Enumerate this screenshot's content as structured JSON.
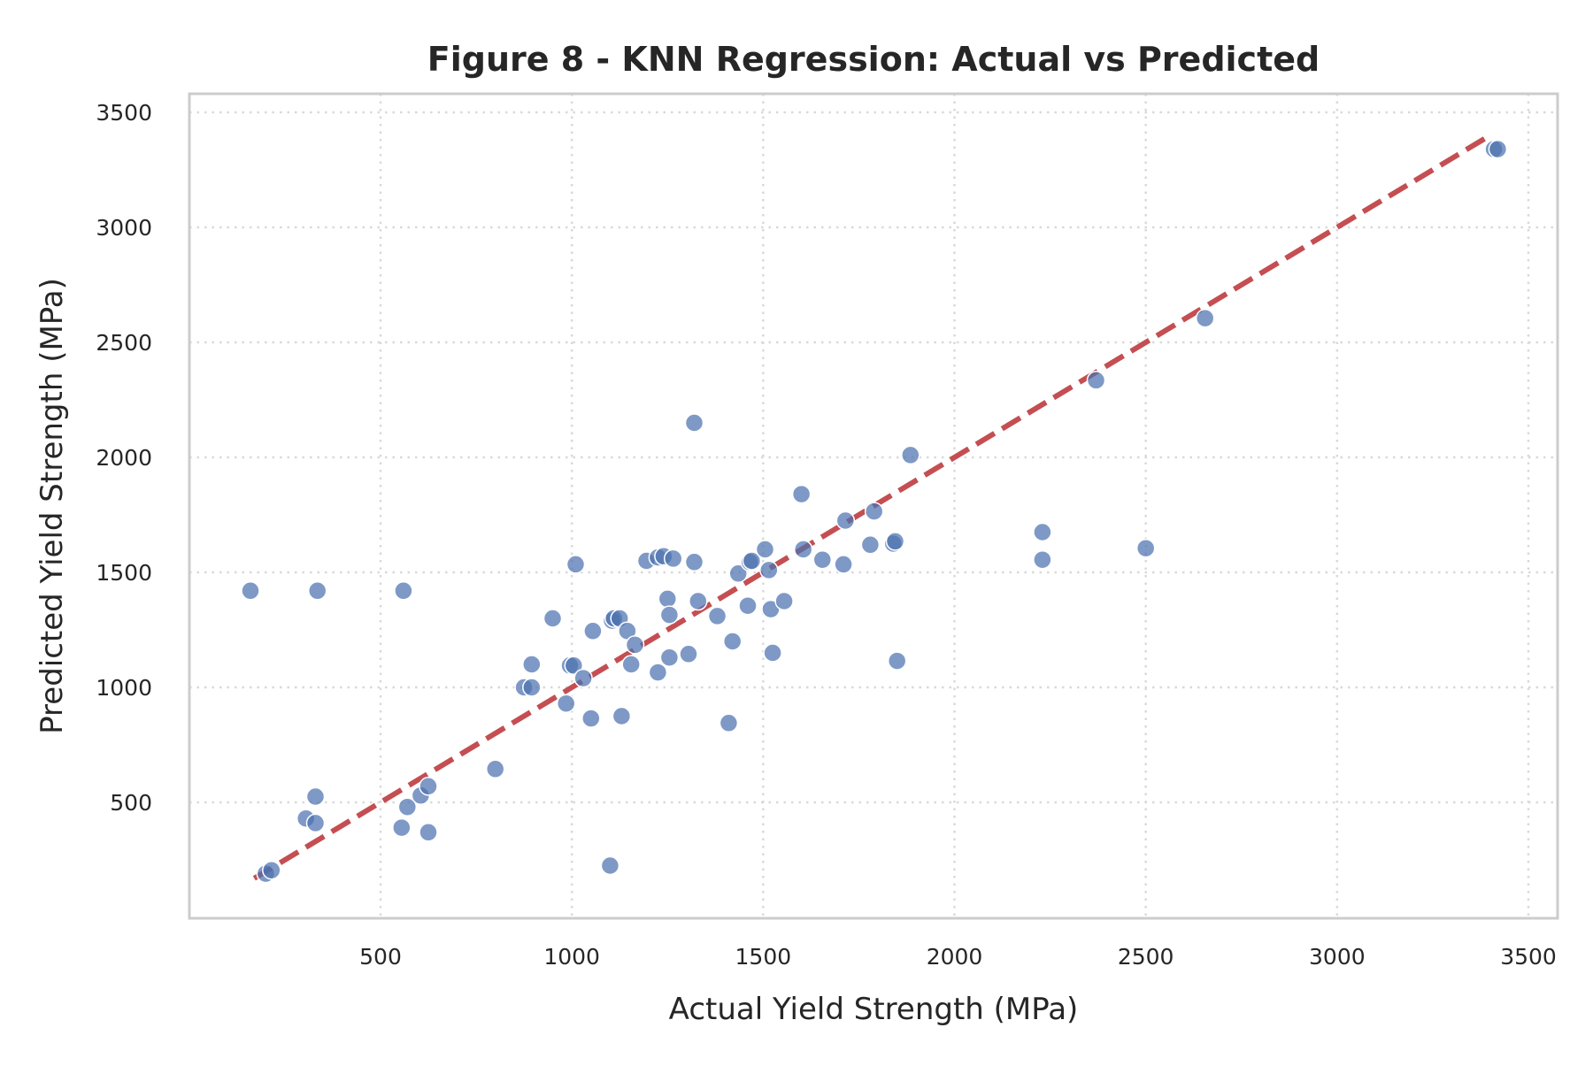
{
  "chart_data": {
    "type": "scatter",
    "title": "Figure 8 - KNN Regression: Actual vs Predicted",
    "xlabel": "Actual Yield Strength (MPa)",
    "ylabel": "Predicted Yield Strength (MPa)",
    "xlim": [
      0,
      3600
    ],
    "ylim": [
      0,
      3600
    ],
    "xticks": [
      500,
      1000,
      1500,
      2000,
      2500,
      3000,
      3500
    ],
    "yticks": [
      500,
      1000,
      1500,
      2000,
      2500,
      3000,
      3500
    ],
    "grid": true,
    "colors": {
      "points": "#4c72b0",
      "reference_line": "#c44e52"
    },
    "reference_line": {
      "style": "dashed",
      "from": [
        170,
        170
      ],
      "to": [
        3400,
        3400
      ]
    },
    "points": [
      [
        160,
        1420
      ],
      [
        200,
        190
      ],
      [
        215,
        205
      ],
      [
        335,
        1420
      ],
      [
        560,
        1420
      ],
      [
        305,
        430
      ],
      [
        330,
        410
      ],
      [
        330,
        525
      ],
      [
        555,
        390
      ],
      [
        570,
        480
      ],
      [
        605,
        530
      ],
      [
        625,
        570
      ],
      [
        625,
        370
      ],
      [
        800,
        645
      ],
      [
        875,
        1000
      ],
      [
        895,
        1000
      ],
      [
        895,
        1100
      ],
      [
        950,
        1300
      ],
      [
        985,
        930
      ],
      [
        995,
        1095
      ],
      [
        1005,
        1095
      ],
      [
        1010,
        1535
      ],
      [
        1030,
        1040
      ],
      [
        1050,
        865
      ],
      [
        1055,
        1245
      ],
      [
        1100,
        225
      ],
      [
        1105,
        1290
      ],
      [
        1110,
        1300
      ],
      [
        1125,
        1300
      ],
      [
        1130,
        875
      ],
      [
        1145,
        1245
      ],
      [
        1155,
        1100
      ],
      [
        1165,
        1185
      ],
      [
        1195,
        1550
      ],
      [
        1225,
        1065
      ],
      [
        1225,
        1565
      ],
      [
        1240,
        1570
      ],
      [
        1250,
        1385
      ],
      [
        1255,
        1315
      ],
      [
        1255,
        1130
      ],
      [
        1265,
        1560
      ],
      [
        1305,
        1145
      ],
      [
        1320,
        1545
      ],
      [
        1320,
        2150
      ],
      [
        1330,
        1375
      ],
      [
        1380,
        1310
      ],
      [
        1410,
        845
      ],
      [
        1420,
        1200
      ],
      [
        1435,
        1495
      ],
      [
        1460,
        1355
      ],
      [
        1465,
        1545
      ],
      [
        1470,
        1550
      ],
      [
        1505,
        1600
      ],
      [
        1515,
        1510
      ],
      [
        1520,
        1340
      ],
      [
        1525,
        1150
      ],
      [
        1555,
        1375
      ],
      [
        1600,
        1840
      ],
      [
        1605,
        1600
      ],
      [
        1655,
        1555
      ],
      [
        1710,
        1535
      ],
      [
        1715,
        1725
      ],
      [
        1780,
        1620
      ],
      [
        1790,
        1765
      ],
      [
        1840,
        1625
      ],
      [
        1845,
        1635
      ],
      [
        1850,
        1115
      ],
      [
        1885,
        2010
      ],
      [
        2230,
        1555
      ],
      [
        2230,
        1675
      ],
      [
        2370,
        2335
      ],
      [
        2500,
        1605
      ],
      [
        2655,
        2605
      ],
      [
        3410,
        3340
      ],
      [
        3420,
        3340
      ]
    ]
  }
}
